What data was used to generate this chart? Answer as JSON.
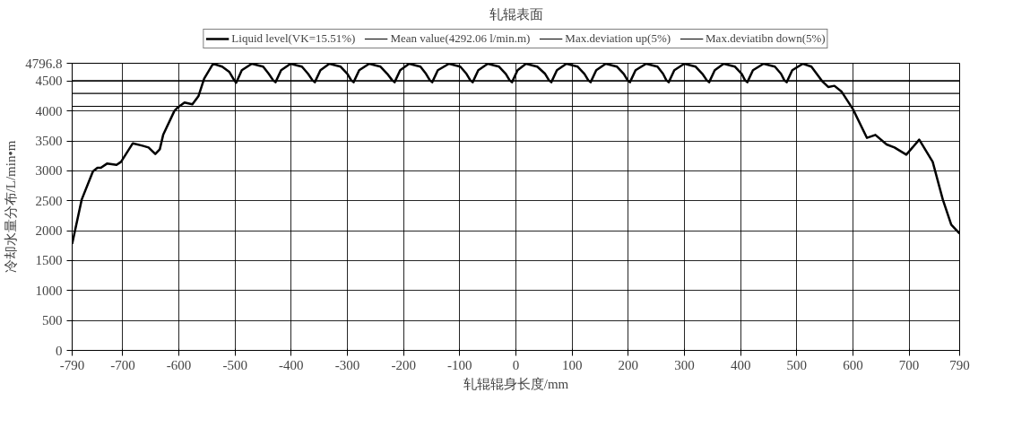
{
  "chart_data": {
    "type": "line",
    "title": "轧辊表面",
    "xlabel": "轧辊辊身长度/mm",
    "ylabel": "冷却水量分布/L/min•m",
    "xlim": [
      -790,
      790
    ],
    "ylim": [
      0,
      4796.8
    ],
    "xticks": [
      -790,
      -700,
      -600,
      -500,
      -400,
      -300,
      -200,
      -100,
      0,
      100,
      200,
      300,
      400,
      500,
      600,
      700,
      790
    ],
    "yticks": [
      0,
      500,
      1000,
      1500,
      2000,
      2500,
      3000,
      3500,
      4000,
      4500,
      4796.8
    ],
    "grid": true,
    "legend": "top",
    "line_style": "solid",
    "marker": "none",
    "series": [
      {
        "name": "Liquid level(VK=15.51%)",
        "color": "#000000",
        "x": [
          -790,
          -773,
          -753,
          -745,
          -739,
          -728,
          -711,
          -703,
          -682,
          -665,
          -654,
          -642,
          -634,
          -628,
          -608,
          -603,
          -590,
          -576,
          -565,
          -555,
          -539,
          -523,
          -510,
          -502,
          -498,
          -488,
          -470,
          -458,
          -450,
          -440,
          -432,
          -428,
          -418,
          -401,
          -389,
          -381,
          -370,
          -362,
          -358,
          -348,
          -332,
          -320,
          -312,
          -300,
          -293,
          -289,
          -279,
          -261,
          -249,
          -241,
          -229,
          -220,
          -216,
          -206,
          -190,
          -178,
          -170,
          -160,
          -153,
          -149,
          -139,
          -119,
          -107,
          -99,
          -88,
          -81,
          -77,
          -67,
          -50,
          -38,
          -30,
          -18,
          -11,
          -7,
          3,
          18,
          30,
          38,
          52,
          59,
          63,
          73,
          90,
          102,
          110,
          122,
          129,
          133,
          143,
          160,
          172,
          180,
          192,
          199,
          203,
          213,
          232,
          244,
          252,
          262,
          268,
          272,
          282,
          300,
          312,
          320,
          332,
          340,
          344,
          354,
          370,
          382,
          390,
          402,
          408,
          412,
          422,
          441,
          453,
          461,
          472,
          478,
          482,
          492,
          511,
          526,
          545,
          556,
          567,
          580,
          600,
          625,
          640,
          660,
          674,
          695,
          718,
          742,
          760,
          775,
          790
        ],
        "values": [
          1780,
          2520,
          2990,
          3050,
          3050,
          3120,
          3100,
          3150,
          3460,
          3420,
          3390,
          3280,
          3360,
          3600,
          4000,
          4050,
          4140,
          4110,
          4250,
          4540,
          4790,
          4740,
          4650,
          4520,
          4470,
          4680,
          4790,
          4760,
          4740,
          4620,
          4510,
          4480,
          4680,
          4790,
          4760,
          4740,
          4620,
          4510,
          4480,
          4680,
          4790,
          4760,
          4740,
          4620,
          4510,
          4480,
          4680,
          4790,
          4760,
          4740,
          4620,
          4510,
          4480,
          4680,
          4790,
          4760,
          4740,
          4620,
          4510,
          4480,
          4680,
          4790,
          4760,
          4740,
          4620,
          4510,
          4480,
          4680,
          4790,
          4760,
          4740,
          4620,
          4510,
          4480,
          4680,
          4790,
          4760,
          4740,
          4620,
          4510,
          4480,
          4680,
          4790,
          4760,
          4740,
          4620,
          4510,
          4480,
          4680,
          4790,
          4760,
          4740,
          4620,
          4510,
          4480,
          4680,
          4790,
          4760,
          4740,
          4620,
          4510,
          4480,
          4680,
          4790,
          4760,
          4740,
          4620,
          4510,
          4480,
          4680,
          4790,
          4760,
          4740,
          4620,
          4510,
          4480,
          4680,
          4790,
          4760,
          4740,
          4620,
          4510,
          4480,
          4680,
          4790,
          4740,
          4500,
          4400,
          4420,
          4320,
          4030,
          3550,
          3600,
          3440,
          3390,
          3270,
          3520,
          3150,
          2520,
          2100,
          1950
        ]
      }
    ],
    "ref_lines": [
      {
        "axis": "y",
        "value": 4292.06,
        "label": "Mean value(4292.06 l/min.m)",
        "color": "#000000"
      },
      {
        "axis": "y",
        "value": 4506.66,
        "label": "Max.deviation up(5%)",
        "color": "#000000"
      },
      {
        "axis": "y",
        "value": 4077.46,
        "label": "Max.deviatibn down(5%)",
        "color": "#000000"
      }
    ]
  }
}
